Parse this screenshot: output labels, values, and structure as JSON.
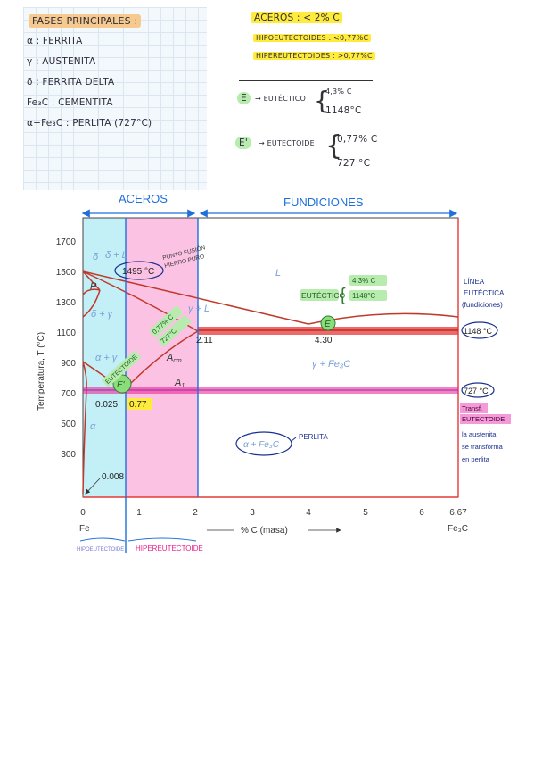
{
  "notes_left": {
    "title": "FASES PRINCIPALES :",
    "items": [
      "α : FERRITA",
      "γ : AUSTENITA",
      "δ : FERRITA DELTA",
      "Fe₃C : CEMENTITA",
      "α+Fe₃C : PERLITA (727°C)"
    ]
  },
  "notes_right": {
    "aceros": "ACEROS : < 2% C",
    "hipo": "HIPOEUTECTOIDES : <0,77%C",
    "hiper": "HIPEREUTECTOIDES : >0,77%C",
    "eutectic_letter": "E",
    "eutectic_word": "→ EUTÉCTICO",
    "eutectic_v1": "4,3% C",
    "eutectic_v2": "1148°C",
    "eutectoid_letter": "E'",
    "eutectoid_word": "→ EUTECTOIDE",
    "eutectoid_v1": "0,77% C",
    "eutectoid_v2": "727 °C"
  },
  "header": {
    "aceros": "ACEROS",
    "fundiciones": "FUNDICIONES"
  },
  "diagram": {
    "y_axis_label": "Temperatura, T (°C)",
    "x_axis_label": "% C (masa)",
    "x_left_name": "Fe",
    "x_right_name": "Fe₃C",
    "y_ticks": [
      "1700",
      "1500",
      "1300",
      "1100",
      "900",
      "700",
      "500",
      "300"
    ],
    "x_ticks": [
      "0",
      "1",
      "2",
      "3",
      "4",
      "5",
      "6",
      "6.67"
    ],
    "regions": {
      "delta": "δ",
      "delta_l": "δ + L",
      "p_point": "P",
      "delta_gamma": "δ + γ",
      "liquid": "L",
      "gamma_l": "γ + L",
      "alpha_gamma": "α + γ",
      "a_point": "A",
      "acm": "A",
      "acm_sub": "cm",
      "a1": "A",
      "a1_sub": "1",
      "gamma_fe3c": "γ + Fe₃C",
      "alpha_left": "α",
      "alpha_fe3c": "α + Fe₃C"
    },
    "values": {
      "t1495": "1495 °C",
      "c211": "2.11",
      "c430": "4.30",
      "c0025": "0.025",
      "c077": "0.77",
      "c0008": "0.008",
      "t1148": "1148 °C",
      "t727": "727 °C"
    },
    "annotations": {
      "punto_fusion_1": "PUNTO FUSIÓN",
      "punto_fusion_2": "HIERRO PURO",
      "eutectico_label": "EUTÉCTICO",
      "eutectico_v1": "4,3% C",
      "eutectico_v2": "1148°C",
      "eutectoide_diag": "EUTECTOIDE",
      "eutectoide_v1": "0,77% C",
      "eutectoide_v2": "727°C",
      "e_letter": "E",
      "e_prime_letter": "E'",
      "perlita": "PERLITA",
      "linea_1": "LÍNEA",
      "linea_2": "EUTÉCTICA",
      "linea_3": "(fundiciones)",
      "transf_1": "Transf.",
      "transf_2": "EUTECTOIDE",
      "austenita_1": "la austenita",
      "austenita_2": "se transforma",
      "austenita_3": "en perlita"
    },
    "bottom_labels": {
      "hipo": "HIPOEUTECTOIDE",
      "hiper": "HIPEREUTECTOIDE"
    },
    "colors": {
      "hipo_zone": "#b9ecf6",
      "hiper_zone": "#fbb7de",
      "eutectic_band": "#e53935",
      "eutectoid_band": "#e91e8c",
      "blue_ink": "#1e6fd9",
      "green_ink": "#3aa935"
    }
  }
}
